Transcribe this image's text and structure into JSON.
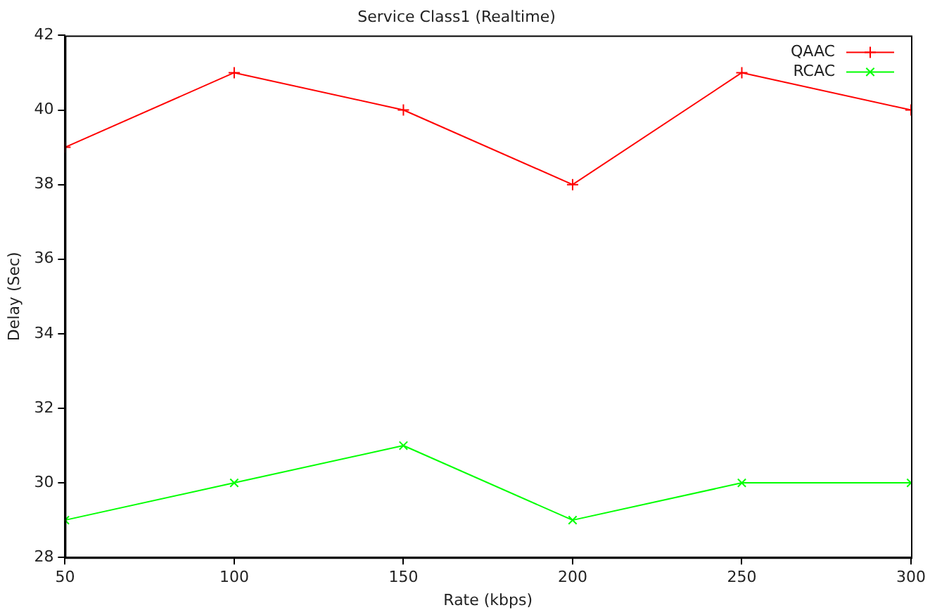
{
  "chart_data": {
    "type": "line",
    "title": "Service Class1 (Realtime)",
    "xlabel": "Rate (kbps)",
    "ylabel": "Delay (Sec)",
    "x": [
      50,
      100,
      150,
      200,
      250,
      300
    ],
    "series": [
      {
        "name": "QAAC",
        "color": "#ff0000",
        "values": [
          39,
          41,
          40,
          38,
          41,
          40
        ]
      },
      {
        "name": "RCAC",
        "color": "#00ff00",
        "values": [
          29,
          30,
          31,
          29,
          30,
          30
        ]
      }
    ],
    "xlim": [
      50,
      300
    ],
    "xticks": [
      50,
      100,
      150,
      200,
      250,
      300
    ],
    "ylim": [
      28,
      42
    ],
    "yticks": [
      28,
      30,
      32,
      34,
      36,
      38,
      40,
      42
    ],
    "grid": false,
    "legend": "top right",
    "marker": "cross",
    "line_style": "solid"
  }
}
